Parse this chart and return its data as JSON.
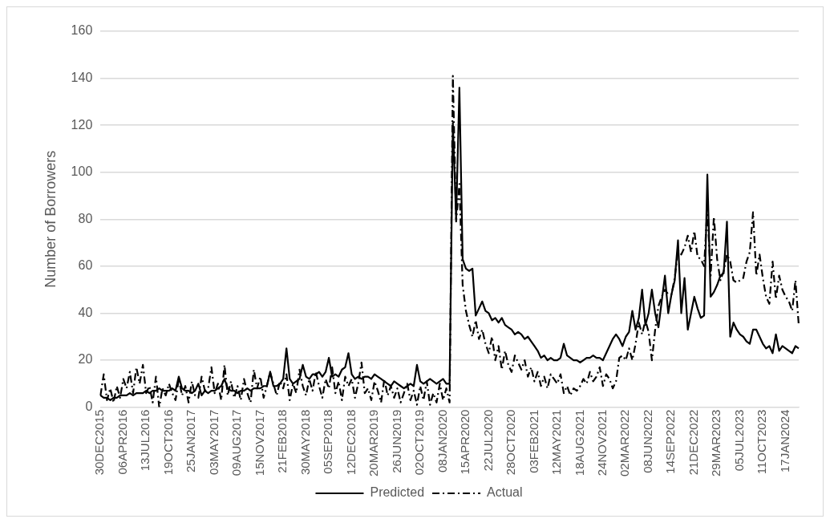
{
  "chart_data": {
    "type": "line",
    "ylabel": "Number of Borrowers",
    "categories": [
      "30DEC2015",
      null,
      null,
      null,
      null,
      null,
      null,
      "06APR2016",
      null,
      null,
      null,
      null,
      null,
      null,
      "13JUL2016",
      null,
      null,
      null,
      null,
      null,
      null,
      "19OCT2016",
      null,
      null,
      null,
      null,
      null,
      null,
      "25JAN2017",
      null,
      null,
      null,
      null,
      null,
      null,
      "03MAY2017",
      null,
      null,
      null,
      null,
      null,
      null,
      "09AUG2017",
      null,
      null,
      null,
      null,
      null,
      null,
      "15NOV2017",
      null,
      null,
      null,
      null,
      null,
      null,
      "21FEB2018",
      null,
      null,
      null,
      null,
      null,
      null,
      "30MAY2018",
      null,
      null,
      null,
      null,
      null,
      null,
      "05SEP2018",
      null,
      null,
      null,
      null,
      null,
      null,
      "12DEC2018",
      null,
      null,
      null,
      null,
      null,
      null,
      "20MAR2019",
      null,
      null,
      null,
      null,
      null,
      null,
      "26JUN2019",
      null,
      null,
      null,
      null,
      null,
      null,
      "02OCT2019",
      null,
      null,
      null,
      null,
      null,
      null,
      "08JAN2020",
      null,
      null,
      null,
      null,
      null,
      null,
      "15APR2020",
      null,
      null,
      null,
      null,
      null,
      null,
      "22JUL2020",
      null,
      null,
      null,
      null,
      null,
      null,
      "28OCT2020",
      null,
      null,
      null,
      null,
      null,
      null,
      "03FEB2021",
      null,
      null,
      null,
      null,
      null,
      null,
      "12MAY2021",
      null,
      null,
      null,
      null,
      null,
      null,
      "18AUG2021",
      null,
      null,
      null,
      null,
      null,
      null,
      "24NOV2021",
      null,
      null,
      null,
      null,
      null,
      null,
      "02MAR2022",
      null,
      null,
      null,
      null,
      null,
      null,
      "08JUN2022",
      null,
      null,
      null,
      null,
      null,
      null,
      "14SEP2022",
      null,
      null,
      null,
      null,
      null,
      null,
      "21DEC2022",
      null,
      null,
      null,
      null,
      null,
      null,
      "29MAR2023",
      null,
      null,
      null,
      null,
      null,
      null,
      "05JUL2023",
      null,
      null,
      null,
      null,
      null,
      null,
      "11OCT2023",
      null,
      null,
      null,
      null,
      null,
      null,
      "17JAN2024",
      null,
      null,
      null,
      null
    ],
    "series": [
      {
        "name": "Predicted",
        "color": "#000000",
        "line_style": "solid",
        "values": [
          5,
          4,
          4,
          3,
          4,
          4,
          5,
          5,
          5,
          6,
          5,
          6,
          6,
          6,
          7,
          6,
          7,
          7,
          8,
          7,
          7,
          7,
          8,
          7,
          13,
          8,
          7,
          7,
          6,
          7,
          10,
          5,
          7,
          6,
          7,
          7,
          8,
          9,
          12,
          8,
          7,
          7,
          6,
          7,
          7,
          8,
          7,
          8,
          8,
          8,
          9,
          9,
          15,
          9,
          9,
          10,
          12,
          25,
          12,
          10,
          11,
          12,
          18,
          13,
          12,
          14,
          14,
          15,
          13,
          15,
          21,
          13,
          14,
          13,
          16,
          17,
          23,
          14,
          12,
          13,
          12,
          13,
          13,
          12,
          14,
          13,
          12,
          11,
          10,
          9,
          11,
          10,
          9,
          8,
          9,
          10,
          9,
          18,
          11,
          10,
          11,
          12,
          11,
          10,
          11,
          12,
          10,
          10,
          121,
          80,
          136,
          63,
          59,
          58,
          59,
          39,
          42,
          45,
          41,
          40,
          37,
          38,
          36,
          38,
          35,
          34,
          33,
          31,
          32,
          31,
          29,
          30,
          28,
          26,
          24,
          21,
          22,
          20,
          21,
          20,
          20,
          21,
          27,
          22,
          21,
          20,
          20,
          19,
          20,
          21,
          21,
          22,
          21,
          21,
          20,
          23,
          26,
          29,
          31,
          29,
          26,
          30,
          32,
          41,
          33,
          38,
          50,
          35,
          40,
          50,
          40,
          34,
          45,
          56,
          40,
          48,
          54,
          71,
          40,
          55,
          33,
          40,
          47,
          42,
          38,
          39,
          99,
          47,
          49,
          52,
          56,
          57,
          79,
          30,
          36,
          33,
          31,
          30,
          28,
          27,
          33,
          33,
          30,
          27,
          25,
          26,
          23,
          31,
          24,
          26,
          25,
          24,
          23,
          26,
          25
        ]
      },
      {
        "name": "Actual",
        "color": "#000000",
        "line_style": "dashed",
        "values": [
          5,
          14,
          3,
          8,
          2,
          9,
          4,
          12,
          8,
          15,
          6,
          17,
          10,
          18,
          6,
          9,
          2,
          13,
          0,
          8,
          5,
          10,
          6,
          3,
          12,
          5,
          9,
          2,
          11,
          5,
          4,
          13,
          7,
          8,
          17,
          6,
          10,
          3,
          18,
          5,
          11,
          4,
          9,
          3,
          12,
          6,
          2,
          16,
          8,
          13,
          4,
          9,
          15,
          10,
          5,
          11,
          8,
          14,
          3,
          10,
          6,
          16,
          9,
          5,
          12,
          7,
          15,
          9,
          4,
          12,
          8,
          17,
          6,
          11,
          3,
          13,
          9,
          12,
          4,
          10,
          19,
          6,
          8,
          3,
          11,
          7,
          2,
          12,
          5,
          9,
          4,
          8,
          2,
          6,
          10,
          3,
          7,
          1,
          9,
          3,
          11,
          1,
          6,
          2,
          10,
          3,
          8,
          2,
          141,
          79,
          95,
          52,
          41,
          35,
          30,
          37,
          29,
          33,
          27,
          23,
          30,
          20,
          26,
          16,
          24,
          18,
          15,
          22,
          19,
          16,
          20,
          13,
          17,
          11,
          15,
          9,
          13,
          8,
          14,
          12,
          10,
          14,
          6,
          9,
          5,
          8,
          7,
          9,
          12,
          10,
          15,
          11,
          13,
          17,
          9,
          14,
          12,
          8,
          11,
          21,
          22,
          20,
          25,
          20,
          27,
          36,
          31,
          37,
          32,
          20,
          33,
          43,
          47,
          50,
          48,
          48,
          55,
          67,
          65,
          68,
          73,
          66,
          75,
          64,
          63,
          60,
          85,
          56,
          81,
          63,
          54,
          58,
          65,
          62,
          54,
          53,
          54,
          55,
          62,
          66,
          83,
          56,
          65,
          55,
          47,
          44,
          62,
          46,
          56,
          50,
          47,
          45,
          41,
          54,
          35
        ]
      }
    ],
    "ylim": [
      0,
      160
    ],
    "yticks": [
      0,
      20,
      40,
      60,
      80,
      100,
      120,
      140,
      160
    ],
    "grid": "y",
    "legend": "bottom",
    "marker": "none"
  }
}
